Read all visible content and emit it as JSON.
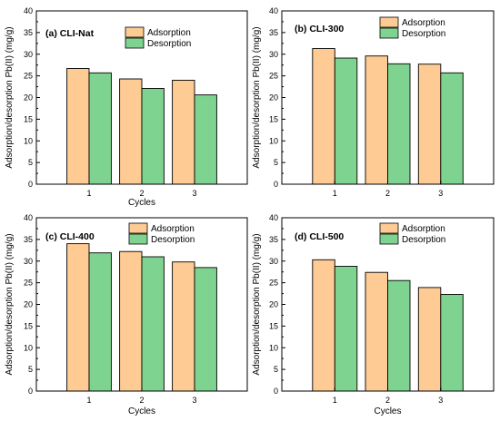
{
  "colors": {
    "adsorption": "#FDCB93",
    "desorption": "#7ED390",
    "axis": "#000000"
  },
  "chart_data": [
    {
      "type": "bar",
      "title": "(a) CLI-Nat",
      "xlabel": "Cycles",
      "ylabel": "Adsorption/desorption Pb(II) (mg/g)",
      "categories": [
        "1",
        "2",
        "3"
      ],
      "ylim": [
        0,
        40
      ],
      "yticks": [
        "0",
        "5",
        "10",
        "15",
        "20",
        "25",
        "30",
        "35",
        "40"
      ],
      "legend_position": "top-center",
      "series": [
        {
          "name": "Adsorption",
          "values": [
            26.7,
            24.3,
            24.0
          ]
        },
        {
          "name": "Desorption",
          "values": [
            25.7,
            22.1,
            20.6
          ]
        }
      ]
    },
    {
      "type": "bar",
      "title": "(b) CLI-300",
      "xlabel": "",
      "ylabel": "Adsorption/desorption Pb(II) (mg/g)",
      "categories": [
        "1",
        "2",
        "3"
      ],
      "ylim": [
        0,
        40
      ],
      "yticks": [
        "0",
        "5",
        "10",
        "15",
        "20",
        "25",
        "30",
        "35",
        "40"
      ],
      "legend_position": "top-right",
      "series": [
        {
          "name": "Adsorption",
          "values": [
            31.3,
            29.6,
            27.7
          ]
        },
        {
          "name": "Desorption",
          "values": [
            29.1,
            27.8,
            25.7
          ]
        }
      ]
    },
    {
      "type": "bar",
      "title": "(c) CLI-400",
      "xlabel": "Cycles",
      "ylabel": "Adsorption/desorption Pb(II) (mg/g)",
      "categories": [
        "1",
        "2",
        "3"
      ],
      "ylim": [
        0,
        40
      ],
      "yticks": [
        "0",
        "5",
        "10",
        "15",
        "20",
        "25",
        "30",
        "35",
        "40"
      ],
      "legend_position": "top-center",
      "series": [
        {
          "name": "Adsorption",
          "values": [
            34.0,
            32.2,
            29.8
          ]
        },
        {
          "name": "Desorption",
          "values": [
            31.9,
            31.0,
            28.5
          ]
        }
      ]
    },
    {
      "type": "bar",
      "title": "(d) CLI-500",
      "xlabel": "Cycles",
      "ylabel": "Adsorption/desorption Pb(II) (mg/g)",
      "categories": [
        "1",
        "2",
        "3"
      ],
      "ylim": [
        0,
        40
      ],
      "yticks": [
        "0",
        "5",
        "10",
        "15",
        "20",
        "25",
        "30",
        "35",
        "40"
      ],
      "legend_position": "top-center",
      "series": [
        {
          "name": "Adsorption",
          "values": [
            30.3,
            27.4,
            23.9
          ]
        },
        {
          "name": "Desorption",
          "values": [
            28.8,
            25.5,
            22.3
          ]
        }
      ]
    }
  ]
}
